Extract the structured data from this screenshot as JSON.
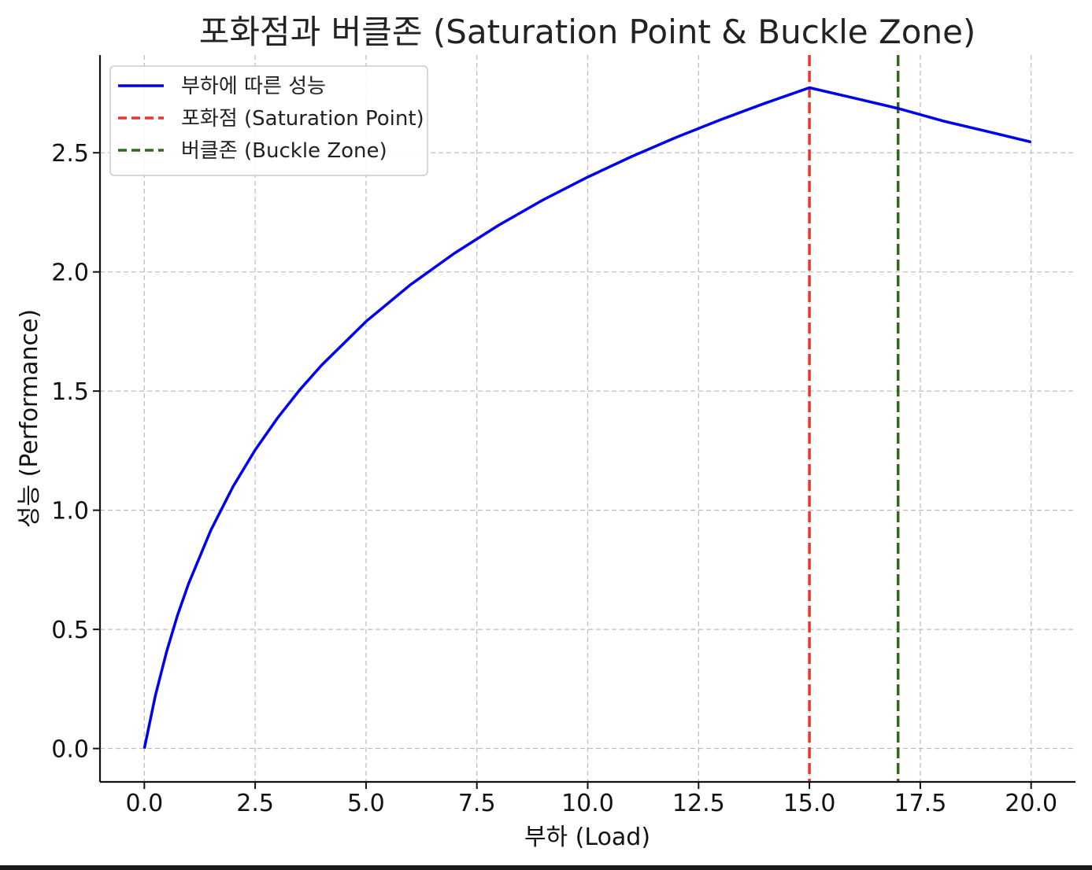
{
  "chart_data": {
    "type": "line",
    "title": "포화점과 버클존 (Saturation Point & Buckle Zone)",
    "xlabel": "부하 (Load)",
    "ylabel": "성능 (Performance)",
    "xlim": [
      -1.0,
      21.0
    ],
    "ylim": [
      -0.14,
      2.91
    ],
    "x_ticks": [
      0.0,
      2.5,
      5.0,
      7.5,
      10.0,
      12.5,
      15.0,
      17.5,
      20.0
    ],
    "y_ticks": [
      0.0,
      0.5,
      1.0,
      1.5,
      2.0,
      2.5
    ],
    "x_tick_labels": [
      "0.0",
      "2.5",
      "5.0",
      "7.5",
      "10.0",
      "12.5",
      "15.0",
      "17.5",
      "20.0"
    ],
    "y_tick_labels": [
      "0.0",
      "0.5",
      "1.0",
      "1.5",
      "2.0",
      "2.5"
    ],
    "grid": true,
    "legend_position": "top-left",
    "series": [
      {
        "name": "부하에 따른 성능",
        "color": "#0000ee",
        "style": "solid",
        "x": [
          0,
          0.25,
          0.5,
          0.75,
          1,
          1.5,
          2,
          2.5,
          3,
          3.5,
          4,
          5,
          6,
          7,
          8,
          9,
          10,
          11,
          12,
          13,
          14,
          15,
          16,
          17,
          18,
          19,
          20
        ],
        "y": [
          0,
          0.223,
          0.405,
          0.56,
          0.693,
          0.916,
          1.099,
          1.253,
          1.386,
          1.504,
          1.609,
          1.792,
          1.946,
          2.079,
          2.197,
          2.303,
          2.398,
          2.485,
          2.565,
          2.639,
          2.708,
          2.773,
          2.73,
          2.686,
          2.634,
          2.59,
          2.545
        ]
      }
    ],
    "vertical_lines": [
      {
        "name": "포화점 (Saturation Point)",
        "x": 15.0,
        "color": "#e8362a",
        "style": "dashed"
      },
      {
        "name": "버클존 (Buckle Zone)",
        "x": 17.0,
        "color": "#2e6b1c",
        "style": "dashed"
      }
    ]
  }
}
